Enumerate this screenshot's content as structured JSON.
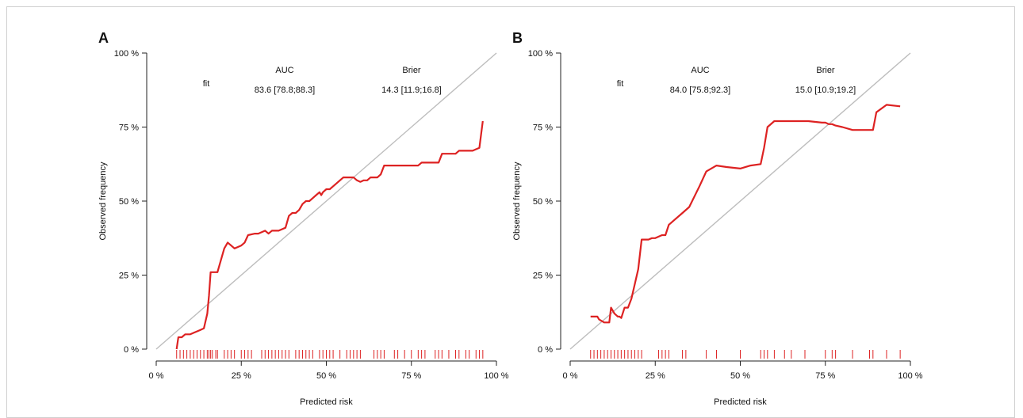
{
  "chart_data": [
    {
      "type": "line",
      "panel_label": "A",
      "xlabel": "Predicted risk",
      "ylabel": "Observed frequency",
      "xlim": [
        0,
        100
      ],
      "ylim": [
        0,
        100
      ],
      "x_ticks": [
        "0 %",
        "25 %",
        "50 %",
        "75 %",
        "100 %"
      ],
      "y_ticks": [
        "0 %",
        "25 %",
        "50 %",
        "75 %",
        "100 %"
      ],
      "x_tick_values": [
        0,
        25,
        50,
        75,
        100
      ],
      "y_tick_values": [
        0,
        25,
        50,
        75,
        100
      ],
      "legend": {
        "row_label": "fit",
        "col_auc": "AUC",
        "col_brier": "Brier",
        "auc": "83.6 [78.8;88.3]",
        "brier": "14.3 [11.9;16.8]"
      },
      "colors": {
        "curve": "#dd2222",
        "diagonal": "#bdbdbd",
        "rug": "#dd2222"
      },
      "series": [
        {
          "x": [
            6,
            6.5,
            7.5,
            8.5,
            10,
            11,
            13,
            14,
            15,
            15.5,
            16,
            16.5,
            18,
            19,
            20,
            21,
            22,
            23,
            24,
            25,
            26,
            27,
            29,
            30,
            32,
            33,
            34,
            35,
            36,
            37,
            38,
            39,
            40,
            41,
            42,
            43,
            44,
            45,
            46,
            47,
            48,
            48.5,
            49,
            50,
            51,
            52,
            53,
            54,
            55,
            56,
            58,
            59,
            60,
            61,
            62,
            63,
            64,
            65,
            66,
            67,
            72,
            73,
            75,
            76,
            77,
            78,
            80,
            82,
            83,
            84,
            86,
            87,
            88,
            89,
            91,
            92,
            93,
            94,
            95,
            96
          ],
          "y": [
            0,
            4,
            4,
            5,
            5,
            5.5,
            6.5,
            7,
            12,
            18,
            26,
            26,
            26,
            30,
            34,
            36,
            35,
            34,
            34.5,
            35,
            36,
            38.5,
            39,
            39,
            40,
            39,
            40,
            40,
            40,
            40.5,
            41,
            45,
            46,
            46,
            47,
            49,
            50,
            50,
            51,
            52,
            53,
            52,
            53,
            54,
            54,
            55,
            56,
            57,
            58,
            58,
            58,
            57,
            56.5,
            57,
            57,
            58,
            58,
            58,
            59,
            62,
            62,
            62,
            62,
            62,
            62,
            63,
            63,
            63,
            63,
            66,
            66,
            66,
            66,
            67,
            67,
            67,
            67,
            67.5,
            68,
            77
          ]
        }
      ],
      "rug": [
        6,
        7,
        8,
        9,
        10,
        11,
        12,
        13,
        14,
        15,
        15.5,
        16,
        16.5,
        17.5,
        18,
        20,
        21,
        22,
        23,
        25,
        26,
        27,
        28,
        31,
        32,
        33,
        34,
        35,
        36,
        37,
        38,
        39,
        41,
        42,
        43,
        44,
        45,
        46,
        48,
        49,
        50,
        51,
        52,
        54,
        56,
        57,
        58,
        59,
        60,
        64,
        65,
        66,
        67,
        70,
        71,
        73,
        75,
        77,
        78,
        79,
        82,
        83,
        84,
        86,
        88,
        89,
        91,
        92,
        94,
        95,
        96
      ]
    },
    {
      "type": "line",
      "panel_label": "B",
      "xlabel": "Predicted risk",
      "ylabel": "Observed frequency",
      "xlim": [
        0,
        100
      ],
      "ylim": [
        0,
        100
      ],
      "x_ticks": [
        "0 %",
        "25 %",
        "50 %",
        "75 %",
        "100 %"
      ],
      "y_ticks": [
        "0 %",
        "25 %",
        "50 %",
        "75 %",
        "100 %"
      ],
      "x_tick_values": [
        0,
        25,
        50,
        75,
        100
      ],
      "y_tick_values": [
        0,
        25,
        50,
        75,
        100
      ],
      "legend": {
        "row_label": "fit",
        "col_auc": "AUC",
        "col_brier": "Brier",
        "auc": "84.0 [75.8;92.3]",
        "brier": "15.0 [10.9;19.2]"
      },
      "colors": {
        "curve": "#dd2222",
        "diagonal": "#bdbdbd",
        "rug": "#dd2222"
      },
      "series": [
        {
          "x": [
            6,
            8,
            8.5,
            10,
            11,
            11.5,
            12,
            13,
            14,
            14.5,
            15,
            16,
            17,
            18,
            19,
            20,
            21,
            23,
            24,
            25,
            26,
            27,
            28,
            29,
            31,
            33,
            35,
            38,
            40,
            43,
            46,
            50,
            53,
            56,
            57,
            58,
            60,
            61,
            65,
            70,
            74,
            75,
            76,
            77,
            78,
            80,
            83,
            87,
            89,
            90,
            93,
            97
          ],
          "y": [
            11,
            11,
            10,
            9,
            9,
            9,
            14,
            12,
            11,
            11,
            10.5,
            14,
            14,
            17,
            22,
            27,
            37,
            37,
            37.5,
            37.5,
            38,
            38.5,
            38.5,
            42,
            44,
            46,
            48,
            55,
            60,
            62,
            61.5,
            61,
            62,
            62.5,
            68,
            75,
            77,
            77,
            77,
            77,
            76.5,
            76.5,
            76,
            76,
            75.5,
            75,
            74,
            74,
            74,
            80,
            82.5,
            82
          ]
        }
      ],
      "rug": [
        6,
        7,
        8,
        9,
        10,
        11,
        12,
        13,
        14,
        15,
        16,
        17,
        18,
        19,
        20,
        21,
        26,
        27,
        28,
        29,
        33,
        34,
        40,
        43,
        50,
        56,
        57,
        58,
        60,
        63,
        65,
        69,
        75,
        77,
        78,
        83,
        88,
        89,
        93,
        97
      ]
    }
  ]
}
